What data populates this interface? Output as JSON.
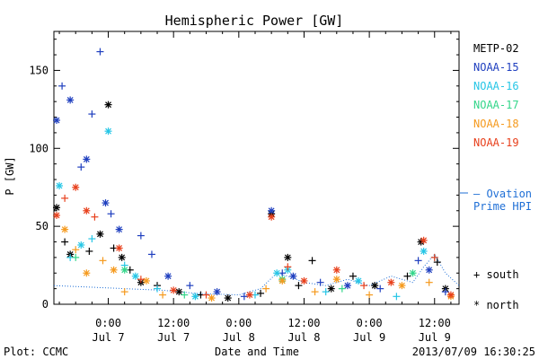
{
  "chart_data": {
    "type": "scatter",
    "title": "Hemispheric Power [GW]",
    "ylabel": "P [GW]",
    "xlabel": "Date and Time",
    "ylim": [
      0,
      175
    ],
    "yticks": [
      0,
      50,
      100,
      150
    ],
    "xlim": [
      "2013-07-06 14:00",
      "2013-07-09 16:30"
    ],
    "xticks": [
      {
        "at": "2013-07-07 00:00",
        "time": "0:00",
        "day": "Jul 7"
      },
      {
        "at": "2013-07-07 12:00",
        "time": "12:00",
        "day": "Jul 7"
      },
      {
        "at": "2013-07-08 00:00",
        "time": "0:00",
        "day": "Jul 8"
      },
      {
        "at": "2013-07-08 12:00",
        "time": "12:00",
        "day": "Jul 8"
      },
      {
        "at": "2013-07-09 00:00",
        "time": "0:00",
        "day": "Jul 9"
      },
      {
        "at": "2013-07-09 12:00",
        "time": "12:00",
        "day": "Jul 9"
      }
    ],
    "legend": {
      "position": "right",
      "entries": [
        {
          "name": "METP-02",
          "color": "#000000"
        },
        {
          "name": "NOAA-15",
          "color": "#1f3fbf"
        },
        {
          "name": "NOAA-16",
          "color": "#26c6e6"
        },
        {
          "name": "NOAA-17",
          "color": "#33d68a"
        },
        {
          "name": "NOAA-18",
          "color": "#f59a1e"
        },
        {
          "name": "NOAA-19",
          "color": "#e8401c"
        }
      ],
      "ovation_label": [
        "– Ovation",
        "Prime HPI"
      ],
      "ovation_color": "#1f6fd6",
      "marker_south": "+ south",
      "marker_north": "* north"
    },
    "series": [
      {
        "name": "METP-02",
        "color": "#000000",
        "points": [
          [
            "2013-07-06 14:30",
            62,
            "n"
          ],
          [
            "2013-07-06 16:00",
            40,
            "s"
          ],
          [
            "2013-07-06 17:00",
            32,
            "n"
          ],
          [
            "2013-07-06 20:30",
            34,
            "s"
          ],
          [
            "2013-07-06 22:30",
            45,
            "n"
          ],
          [
            "2013-07-07 00:00",
            128,
            "n"
          ],
          [
            "2013-07-07 01:00",
            36,
            "s"
          ],
          [
            "2013-07-07 02:30",
            30,
            "n"
          ],
          [
            "2013-07-07 04:00",
            22,
            "s"
          ],
          [
            "2013-07-07 06:00",
            14,
            "n"
          ],
          [
            "2013-07-07 09:00",
            12,
            "s"
          ],
          [
            "2013-07-07 13:00",
            8,
            "n"
          ],
          [
            "2013-07-07 17:00",
            6,
            "s"
          ],
          [
            "2013-07-07 22:00",
            4,
            "n"
          ],
          [
            "2013-07-08 04:00",
            7,
            "s"
          ],
          [
            "2013-07-08 06:00",
            58,
            "n"
          ],
          [
            "2013-07-08 09:00",
            30,
            "n"
          ],
          [
            "2013-07-08 11:00",
            12,
            "s"
          ],
          [
            "2013-07-08 13:30",
            28,
            "s"
          ],
          [
            "2013-07-08 17:00",
            10,
            "n"
          ],
          [
            "2013-07-08 21:00",
            18,
            "s"
          ],
          [
            "2013-07-09 01:00",
            12,
            "n"
          ],
          [
            "2013-07-09 07:00",
            18,
            "s"
          ],
          [
            "2013-07-09 09:30",
            40,
            "n"
          ],
          [
            "2013-07-09 12:30",
            27,
            "s"
          ],
          [
            "2013-07-09 14:00",
            10,
            "n"
          ]
        ]
      },
      {
        "name": "NOAA-15",
        "color": "#1f3fbf",
        "points": [
          [
            "2013-07-06 14:30",
            118,
            "n"
          ],
          [
            "2013-07-06 15:30",
            140,
            "s"
          ],
          [
            "2013-07-06 17:00",
            131,
            "n"
          ],
          [
            "2013-07-06 19:00",
            88,
            "s"
          ],
          [
            "2013-07-06 20:00",
            93,
            "n"
          ],
          [
            "2013-07-06 21:00",
            122,
            "s"
          ],
          [
            "2013-07-06 22:30",
            162,
            "s"
          ],
          [
            "2013-07-06 23:30",
            65,
            "n"
          ],
          [
            "2013-07-07 00:30",
            58,
            "s"
          ],
          [
            "2013-07-07 02:00",
            48,
            "n"
          ],
          [
            "2013-07-07 06:00",
            44,
            "s"
          ],
          [
            "2013-07-07 08:00",
            32,
            "s"
          ],
          [
            "2013-07-07 11:00",
            18,
            "n"
          ],
          [
            "2013-07-07 15:00",
            12,
            "s"
          ],
          [
            "2013-07-07 20:00",
            8,
            "n"
          ],
          [
            "2013-07-08 01:00",
            5,
            "s"
          ],
          [
            "2013-07-08 06:00",
            60,
            "n"
          ],
          [
            "2013-07-08 08:00",
            20,
            "s"
          ],
          [
            "2013-07-08 10:00",
            18,
            "n"
          ],
          [
            "2013-07-08 15:00",
            14,
            "s"
          ],
          [
            "2013-07-08 20:00",
            12,
            "n"
          ],
          [
            "2013-07-09 02:00",
            10,
            "s"
          ],
          [
            "2013-07-09 09:00",
            28,
            "s"
          ],
          [
            "2013-07-09 11:00",
            22,
            "n"
          ],
          [
            "2013-07-09 14:00",
            8,
            "s"
          ]
        ]
      },
      {
        "name": "NOAA-16",
        "color": "#26c6e6",
        "points": [
          [
            "2013-07-06 15:00",
            76,
            "n"
          ],
          [
            "2013-07-06 17:00",
            30,
            "s"
          ],
          [
            "2013-07-06 19:00",
            38,
            "n"
          ],
          [
            "2013-07-06 21:00",
            42,
            "s"
          ],
          [
            "2013-07-07 00:00",
            111,
            "n"
          ],
          [
            "2013-07-07 03:00",
            25,
            "s"
          ],
          [
            "2013-07-07 05:00",
            18,
            "n"
          ],
          [
            "2013-07-07 09:00",
            10,
            "s"
          ],
          [
            "2013-07-07 16:00",
            5,
            "n"
          ],
          [
            "2013-07-08 03:00",
            6,
            "s"
          ],
          [
            "2013-07-08 07:00",
            20,
            "n"
          ],
          [
            "2013-07-08 09:00",
            22,
            "n"
          ],
          [
            "2013-07-08 16:00",
            8,
            "s"
          ],
          [
            "2013-07-08 22:00",
            15,
            "n"
          ],
          [
            "2013-07-09 05:00",
            5,
            "s"
          ],
          [
            "2013-07-09 10:00",
            34,
            "n"
          ],
          [
            "2013-07-09 12:00",
            30,
            "s"
          ]
        ]
      },
      {
        "name": "NOAA-17",
        "color": "#33d68a",
        "points": [
          [
            "2013-07-06 18:00",
            30,
            "s"
          ],
          [
            "2013-07-07 03:00",
            22,
            "n"
          ],
          [
            "2013-07-07 14:00",
            6,
            "s"
          ],
          [
            "2013-07-08 08:00",
            16,
            "n"
          ],
          [
            "2013-07-08 19:00",
            10,
            "s"
          ],
          [
            "2013-07-09 08:00",
            20,
            "n"
          ]
        ]
      },
      {
        "name": "NOAA-18",
        "color": "#f59a1e",
        "points": [
          [
            "2013-07-06 16:00",
            48,
            "n"
          ],
          [
            "2013-07-06 18:00",
            35,
            "s"
          ],
          [
            "2013-07-06 20:00",
            20,
            "n"
          ],
          [
            "2013-07-06 23:00",
            28,
            "s"
          ],
          [
            "2013-07-07 01:00",
            22,
            "n"
          ],
          [
            "2013-07-07 03:00",
            8,
            "s"
          ],
          [
            "2013-07-07 07:00",
            15,
            "n"
          ],
          [
            "2013-07-07 10:00",
            6,
            "s"
          ],
          [
            "2013-07-07 19:00",
            4,
            "n"
          ],
          [
            "2013-07-08 05:00",
            10,
            "s"
          ],
          [
            "2013-07-08 08:00",
            15,
            "n"
          ],
          [
            "2013-07-08 14:00",
            8,
            "s"
          ],
          [
            "2013-07-08 18:00",
            16,
            "n"
          ],
          [
            "2013-07-09 00:00",
            6,
            "s"
          ],
          [
            "2013-07-09 06:00",
            12,
            "n"
          ],
          [
            "2013-07-09 11:00",
            14,
            "s"
          ],
          [
            "2013-07-09 15:00",
            5,
            "n"
          ]
        ]
      },
      {
        "name": "NOAA-19",
        "color": "#e8401c",
        "points": [
          [
            "2013-07-06 14:30",
            57,
            "n"
          ],
          [
            "2013-07-06 16:00",
            68,
            "s"
          ],
          [
            "2013-07-06 18:00",
            75,
            "n"
          ],
          [
            "2013-07-06 20:00",
            60,
            "n"
          ],
          [
            "2013-07-06 21:30",
            56,
            "s"
          ],
          [
            "2013-07-07 02:00",
            36,
            "n"
          ],
          [
            "2013-07-07 06:00",
            16,
            "s"
          ],
          [
            "2013-07-07 12:00",
            9,
            "n"
          ],
          [
            "2013-07-07 18:00",
            6,
            "s"
          ],
          [
            "2013-07-08 02:00",
            6,
            "n"
          ],
          [
            "2013-07-08 06:00",
            56,
            "n"
          ],
          [
            "2013-07-08 09:00",
            24,
            "s"
          ],
          [
            "2013-07-08 12:00",
            15,
            "n"
          ],
          [
            "2013-07-08 18:00",
            22,
            "n"
          ],
          [
            "2013-07-08 23:00",
            12,
            "s"
          ],
          [
            "2013-07-09 04:00",
            14,
            "n"
          ],
          [
            "2013-07-09 10:00",
            41,
            "n"
          ],
          [
            "2013-07-09 12:00",
            30,
            "s"
          ],
          [
            "2013-07-09 15:00",
            6,
            "n"
          ]
        ]
      }
    ],
    "ovation": [
      [
        "2013-07-06 14:00",
        12
      ],
      [
        "2013-07-07 03:00",
        10
      ],
      [
        "2013-07-07 10:00",
        9
      ],
      [
        "2013-07-07 16:00",
        7
      ],
      [
        "2013-07-08 00:00",
        6
      ],
      [
        "2013-07-08 04:00",
        10
      ],
      [
        "2013-07-08 07:00",
        20
      ],
      [
        "2013-07-08 09:00",
        18
      ],
      [
        "2013-07-08 12:00",
        14
      ],
      [
        "2013-07-08 16:00",
        12
      ],
      [
        "2013-07-08 20:00",
        16
      ],
      [
        "2013-07-09 00:00",
        12
      ],
      [
        "2013-07-09 04:00",
        18
      ],
      [
        "2013-07-09 08:00",
        14
      ],
      [
        "2013-07-09 10:00",
        24
      ],
      [
        "2013-07-09 12:00",
        32
      ],
      [
        "2013-07-09 14:00",
        20
      ],
      [
        "2013-07-09 16:30",
        12
      ]
    ]
  },
  "footer": {
    "left": "Plot: CCMC",
    "right": "2013/07/09 16:30:25"
  }
}
